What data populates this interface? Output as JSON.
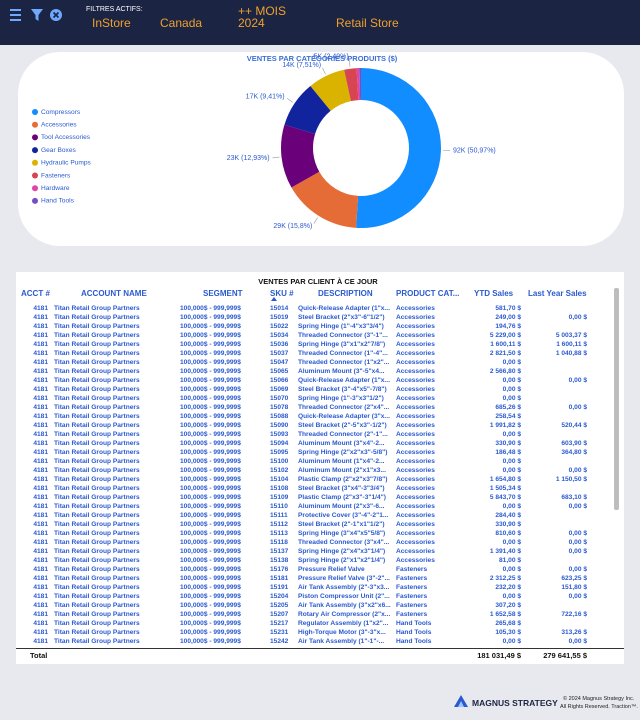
{
  "header": {
    "filters_label": "FILTRES ACTIFS:",
    "filters": [
      "InStore",
      "Canada",
      "++ MOIS 2024",
      "Retail Store"
    ]
  },
  "chart_data": {
    "type": "pie",
    "donut": true,
    "title": "VENTES PAR CATÉGORIES PRODUITS ($)",
    "categories": [
      "Compressors",
      "Accessories",
      "Tool Accessories",
      "Gear Boxes",
      "Hydraulic Pumps",
      "Fasteners",
      "Hardware",
      "Hand Tools"
    ],
    "values": [
      50.97,
      15.8,
      12.93,
      9.41,
      7.51,
      2.49,
      0.6,
      0.29
    ],
    "value_labels": [
      "92K (50,97%)",
      "29K (15,8%)",
      "23K (12,93%)",
      "17K (9,41%)",
      "14K (7,51%)",
      "5K (2,49%)",
      null,
      null
    ],
    "colors": [
      "#118DFF",
      "#E66C37",
      "#6B007B",
      "#12239E",
      "#D9B300",
      "#D64550",
      "#E044A7",
      "#744EC2"
    ]
  },
  "table": {
    "title": "VENTES PAR CLIENT À CE JOUR",
    "columns": [
      "ACCT #",
      "ACCOUNT NAME",
      "SEGMENT",
      "SKU #",
      "DESCRIPTION",
      "PRODUCT CAT...",
      "YTD Sales",
      "Last Year Sales"
    ],
    "rows": [
      [
        "4181",
        "Titan Retail Group Partners",
        "100,000$ - 999,999$",
        "15014",
        "Quick-Release Adapter (1\"x...",
        "Accessories",
        "581,70 $",
        null
      ],
      [
        "4181",
        "Titan Retail Group Partners",
        "100,000$ - 999,999$",
        "15019",
        "Steel Bracket (2\"x3\"-6\"1/2\")",
        "Accessories",
        "249,00 $",
        "0,00 $"
      ],
      [
        "4181",
        "Titan Retail Group Partners",
        "100,000$ - 999,999$",
        "15022",
        "Spring Hinge (1\"-4\"x3\"3/4\")",
        "Accessories",
        "194,76 $",
        null
      ],
      [
        "4181",
        "Titan Retail Group Partners",
        "100,000$ - 999,999$",
        "15034",
        "Threaded Connector (3\"-1\"...",
        "Accessories",
        "5 229,00 $",
        "5 003,37 $"
      ],
      [
        "4181",
        "Titan Retail Group Partners",
        "100,000$ - 999,999$",
        "15036",
        "Spring Hinge (3\"x1\"x2\"7/8\")",
        "Accessories",
        "1 600,11 $",
        "1 600,11 $"
      ],
      [
        "4181",
        "Titan Retail Group Partners",
        "100,000$ - 999,999$",
        "15037",
        "Threaded Connector (1\"-4\"...",
        "Accessories",
        "2 821,50 $",
        "1 040,88 $"
      ],
      [
        "4181",
        "Titan Retail Group Partners",
        "100,000$ - 999,999$",
        "15047",
        "Threaded Connector (1\"x2\"...",
        "Accessories",
        "0,00 $",
        null
      ],
      [
        "4181",
        "Titan Retail Group Partners",
        "100,000$ - 999,999$",
        "15065",
        "Aluminum Mount (3\"-5\"x4...",
        "Accessories",
        "2 566,80 $",
        null
      ],
      [
        "4181",
        "Titan Retail Group Partners",
        "100,000$ - 999,999$",
        "15066",
        "Quick-Release Adapter (1\"x...",
        "Accessories",
        "0,00 $",
        "0,00 $"
      ],
      [
        "4181",
        "Titan Retail Group Partners",
        "100,000$ - 999,999$",
        "15069",
        "Steel Bracket (3\"-4\"x5\"-7/8\")",
        "Accessories",
        "0,00 $",
        null
      ],
      [
        "4181",
        "Titan Retail Group Partners",
        "100,000$ - 999,999$",
        "15070",
        "Spring Hinge (1\"-3\"x3\"1/2\")",
        "Accessories",
        "0,00 $",
        null
      ],
      [
        "4181",
        "Titan Retail Group Partners",
        "100,000$ - 999,999$",
        "15078",
        "Threaded Connector (2\"x4\"...",
        "Accessories",
        "685,26 $",
        "0,00 $"
      ],
      [
        "4181",
        "Titan Retail Group Partners",
        "100,000$ - 999,999$",
        "15088",
        "Quick-Release Adapter (3\"x...",
        "Accessories",
        "258,54 $",
        null
      ],
      [
        "4181",
        "Titan Retail Group Partners",
        "100,000$ - 999,999$",
        "15090",
        "Steel Bracket (2\"-5\"x3\"-1/2\")",
        "Accessories",
        "1 991,82 $",
        "520,44 $"
      ],
      [
        "4181",
        "Titan Retail Group Partners",
        "100,000$ - 999,999$",
        "15093",
        "Threaded Connector (2\"-1\"...",
        "Accessories",
        "0,00 $",
        null
      ],
      [
        "4181",
        "Titan Retail Group Partners",
        "100,000$ - 999,999$",
        "15094",
        "Aluminum Mount (3\"x4\"-2...",
        "Accessories",
        "330,90 $",
        "603,90 $"
      ],
      [
        "4181",
        "Titan Retail Group Partners",
        "100,000$ - 999,999$",
        "15095",
        "Spring Hinge (2\"x2\"x3\"-5/8\")",
        "Accessories",
        "186,48 $",
        "364,80 $"
      ],
      [
        "4181",
        "Titan Retail Group Partners",
        "100,000$ - 999,999$",
        "15100",
        "Aluminum Mount (1\"x4\"-2...",
        "Accessories",
        "0,00 $",
        null
      ],
      [
        "4181",
        "Titan Retail Group Partners",
        "100,000$ - 999,999$",
        "15102",
        "Aluminum Mount (2\"x1\"x3...",
        "Accessories",
        "0,00 $",
        "0,00 $"
      ],
      [
        "4181",
        "Titan Retail Group Partners",
        "100,000$ - 999,999$",
        "15104",
        "Plastic Clamp (2\"x2\"x3\"7/8\")",
        "Accessories",
        "1 654,80 $",
        "1 150,50 $"
      ],
      [
        "4181",
        "Titan Retail Group Partners",
        "100,000$ - 999,999$",
        "15108",
        "Steel Bracket (3\"x4\"-3\"3/4\")",
        "Accessories",
        "1 505,34 $",
        null
      ],
      [
        "4181",
        "Titan Retail Group Partners",
        "100,000$ - 999,999$",
        "15109",
        "Plastic Clamp (2\"x3\"-3\"1/4\")",
        "Accessories",
        "5 843,70 $",
        "683,10 $"
      ],
      [
        "4181",
        "Titan Retail Group Partners",
        "100,000$ - 999,999$",
        "15110",
        "Aluminum Mount (2\"x3\"-6...",
        "Accessories",
        "0,00 $",
        "0,00 $"
      ],
      [
        "4181",
        "Titan Retail Group Partners",
        "100,000$ - 999,999$",
        "15111",
        "Protective Cover (3\"-4\"-2\"1...",
        "Accessories",
        "284,40 $",
        null
      ],
      [
        "4181",
        "Titan Retail Group Partners",
        "100,000$ - 999,999$",
        "15112",
        "Steel Bracket (2\"-1\"x1\"1/2\")",
        "Accessories",
        "330,90 $",
        null
      ],
      [
        "4181",
        "Titan Retail Group Partners",
        "100,000$ - 999,999$",
        "15113",
        "Spring Hinge (3\"x4\"x5\"5/8\")",
        "Accessories",
        "810,60 $",
        "0,00 $"
      ],
      [
        "4181",
        "Titan Retail Group Partners",
        "100,000$ - 999,999$",
        "15118",
        "Threaded Connector (3\"x4\"...",
        "Accessories",
        "0,00 $",
        "0,00 $"
      ],
      [
        "4181",
        "Titan Retail Group Partners",
        "100,000$ - 999,999$",
        "15137",
        "Spring Hinge (2\"x4\"x3\"1/4\")",
        "Accessories",
        "1 391,40 $",
        "0,00 $"
      ],
      [
        "4181",
        "Titan Retail Group Partners",
        "100,000$ - 999,999$",
        "15138",
        "Spring Hinge (2\"x1\"x2\"1/4\")",
        "Accessories",
        "81,00 $",
        null
      ],
      [
        "4181",
        "Titan Retail Group Partners",
        "100,000$ - 999,999$",
        "15176",
        "Pressure Relief Valve",
        "Fasteners",
        "0,00 $",
        "0,00 $"
      ],
      [
        "4181",
        "Titan Retail Group Partners",
        "100,000$ - 999,999$",
        "15181",
        "Pressure Relief Valve (3\"-2\"...",
        "Fasteners",
        "2 312,25 $",
        "623,25 $"
      ],
      [
        "4181",
        "Titan Retail Group Partners",
        "100,000$ - 999,999$",
        "15191",
        "Air Tank Assembly (2\"-3\"x3...",
        "Fasteners",
        "232,20 $",
        "151,80 $"
      ],
      [
        "4181",
        "Titan Retail Group Partners",
        "100,000$ - 999,999$",
        "15204",
        "Piston Compressor Unit (2\"...",
        "Fasteners",
        "0,00 $",
        "0,00 $"
      ],
      [
        "4181",
        "Titan Retail Group Partners",
        "100,000$ - 999,999$",
        "15205",
        "Air Tank Assembly (3\"x2\"x6...",
        "Fasteners",
        "307,20 $",
        null
      ],
      [
        "4181",
        "Titan Retail Group Partners",
        "100,000$ - 999,999$",
        "15207",
        "Rotary Air Compressor (2\"x...",
        "Fasteners",
        "1 652,58 $",
        "722,16 $"
      ],
      [
        "4181",
        "Titan Retail Group Partners",
        "100,000$ - 999,999$",
        "15217",
        "Regulator Assembly (1\"x2\"...",
        "Hand Tools",
        "265,68 $",
        null
      ],
      [
        "4181",
        "Titan Retail Group Partners",
        "100,000$ - 999,999$",
        "15231",
        "High-Torque Motor (3\"-3\"x...",
        "Hand Tools",
        "105,30 $",
        "313,26 $"
      ],
      [
        "4181",
        "Titan Retail Group Partners",
        "100,000$ - 999,999$",
        "15242",
        "Air Tank Assembly (1\"-1\"-...",
        "Hand Tools",
        "0,00 $",
        "0,00 $"
      ]
    ],
    "total": {
      "label": "Total",
      "values": [
        "181 031,49 $",
        "279 641,55 $"
      ]
    }
  },
  "footer": {
    "brand": "MAGNUS STRATEGY",
    "copyright": "© 2024 Magnus Strategy Inc.",
    "rights": "All Rights Reserved. Traction™."
  }
}
